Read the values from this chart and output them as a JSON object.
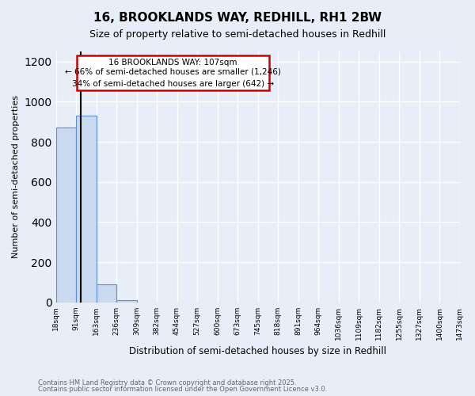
{
  "title_line1": "16, BROOKLANDS WAY, REDHILL, RH1 2BW",
  "title_line2": "Size of property relative to semi-detached houses in Redhill",
  "xlabel": "Distribution of semi-detached houses by size in Redhill",
  "ylabel": "Number of semi-detached properties",
  "bin_labels": [
    "18sqm",
    "91sqm",
    "163sqm",
    "236sqm",
    "309sqm",
    "382sqm",
    "454sqm",
    "527sqm",
    "600sqm",
    "673sqm",
    "745sqm",
    "818sqm",
    "891sqm",
    "964sqm",
    "1036sqm",
    "1109sqm",
    "1182sqm",
    "1255sqm",
    "1327sqm",
    "1400sqm",
    "1473sqm"
  ],
  "bar_values": [
    870,
    930,
    90,
    10,
    0,
    0,
    0,
    0,
    0,
    0,
    0,
    0,
    0,
    0,
    0,
    0,
    0,
    0,
    0,
    0
  ],
  "bar_color": "#c9d9f0",
  "bar_edge_color": "#5b8dd9",
  "annotation_title": "16 BROOKLANDS WAY: 107sqm",
  "annotation_line1": "← 66% of semi-detached houses are smaller (1,246)",
  "annotation_line2": "34% of semi-detached houses are larger (642) →",
  "annotation_box_color": "#ffffff",
  "annotation_box_edge": "#cc0000",
  "ylim": [
    0,
    1250
  ],
  "yticks": [
    0,
    200,
    400,
    600,
    800,
    1000,
    1200
  ],
  "footnote_line1": "Contains HM Land Registry data © Crown copyright and database right 2025.",
  "footnote_line2": "Contains public sector information licensed under the Open Government Licence v3.0.",
  "background_color": "#e8eef8",
  "plot_bg_color": "#e8eef8",
  "grid_color": "#ffffff"
}
